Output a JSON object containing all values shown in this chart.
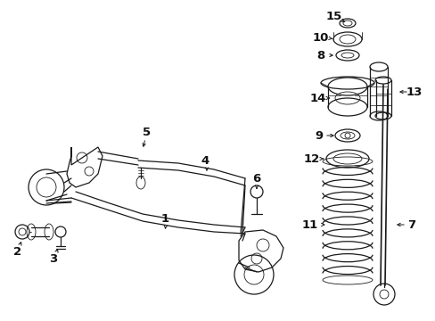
{
  "bg_color": "#ffffff",
  "line_color": "#1a1a1a",
  "fig_width": 4.89,
  "fig_height": 3.6,
  "dpi": 100,
  "text_fontsize": 8.5,
  "arrow_color": "#1a1a1a",
  "lw_main": 0.9,
  "lw_thin": 0.6
}
